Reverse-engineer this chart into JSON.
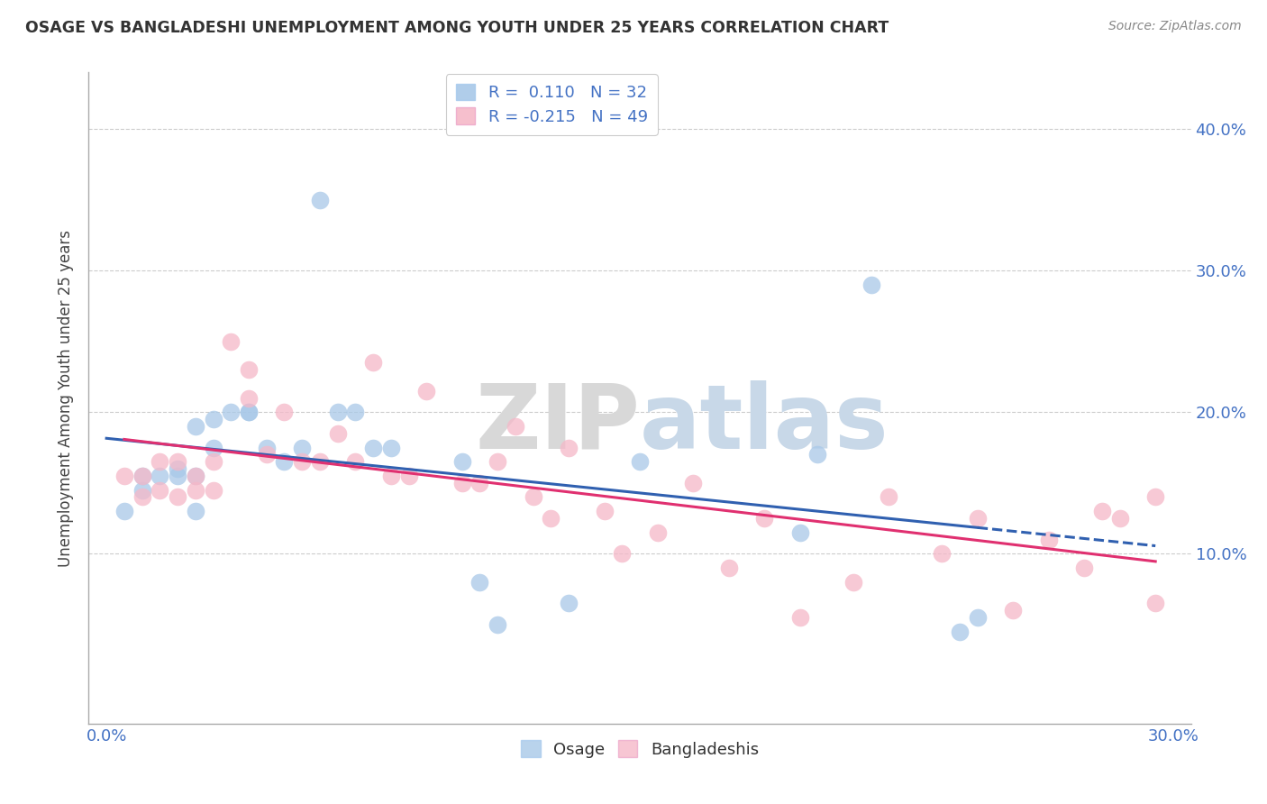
{
  "title": "OSAGE VS BANGLADESHI UNEMPLOYMENT AMONG YOUTH UNDER 25 YEARS CORRELATION CHART",
  "source": "Source: ZipAtlas.com",
  "ylabel": "Unemployment Among Youth under 25 years",
  "watermark_zip": "ZIP",
  "watermark_atlas": "atlas",
  "xlim": [
    -0.005,
    0.305
  ],
  "ylim": [
    -0.02,
    0.44
  ],
  "xticks": [
    0.0,
    0.05,
    0.1,
    0.15,
    0.2,
    0.25,
    0.3
  ],
  "ytick_positions": [
    0.0,
    0.1,
    0.2,
    0.3,
    0.4
  ],
  "ytick_labels_right": [
    "",
    "10.0%",
    "20.0%",
    "30.0%",
    "40.0%"
  ],
  "osage_color": "#a8c8e8",
  "bangladeshi_color": "#f5b8c8",
  "osage_line_color": "#3060b0",
  "bangladeshi_line_color": "#e03070",
  "legend_r_osage": " 0.110",
  "legend_n_osage": "32",
  "legend_r_bangladeshi": "-0.215",
  "legend_n_bangladeshi": "49",
  "osage_x": [
    0.005,
    0.01,
    0.01,
    0.015,
    0.02,
    0.02,
    0.025,
    0.025,
    0.025,
    0.03,
    0.03,
    0.035,
    0.04,
    0.04,
    0.045,
    0.05,
    0.055,
    0.06,
    0.065,
    0.07,
    0.075,
    0.08,
    0.1,
    0.105,
    0.11,
    0.13,
    0.15,
    0.195,
    0.2,
    0.215,
    0.24,
    0.245
  ],
  "osage_y": [
    0.13,
    0.155,
    0.145,
    0.155,
    0.155,
    0.16,
    0.19,
    0.155,
    0.13,
    0.195,
    0.175,
    0.2,
    0.2,
    0.2,
    0.175,
    0.165,
    0.175,
    0.35,
    0.2,
    0.2,
    0.175,
    0.175,
    0.165,
    0.08,
    0.05,
    0.065,
    0.165,
    0.115,
    0.17,
    0.29,
    0.045,
    0.055
  ],
  "bangladeshi_x": [
    0.005,
    0.01,
    0.01,
    0.015,
    0.015,
    0.02,
    0.02,
    0.025,
    0.025,
    0.03,
    0.03,
    0.035,
    0.04,
    0.04,
    0.045,
    0.05,
    0.055,
    0.06,
    0.065,
    0.07,
    0.075,
    0.08,
    0.085,
    0.09,
    0.1,
    0.105,
    0.11,
    0.115,
    0.12,
    0.125,
    0.13,
    0.14,
    0.145,
    0.155,
    0.165,
    0.175,
    0.185,
    0.195,
    0.21,
    0.22,
    0.235,
    0.245,
    0.255,
    0.265,
    0.275,
    0.285,
    0.295,
    0.295,
    0.28
  ],
  "bangladeshi_y": [
    0.155,
    0.155,
    0.14,
    0.165,
    0.145,
    0.165,
    0.14,
    0.155,
    0.145,
    0.165,
    0.145,
    0.25,
    0.23,
    0.21,
    0.17,
    0.2,
    0.165,
    0.165,
    0.185,
    0.165,
    0.235,
    0.155,
    0.155,
    0.215,
    0.15,
    0.15,
    0.165,
    0.19,
    0.14,
    0.125,
    0.175,
    0.13,
    0.1,
    0.115,
    0.15,
    0.09,
    0.125,
    0.055,
    0.08,
    0.14,
    0.1,
    0.125,
    0.06,
    0.11,
    0.09,
    0.125,
    0.065,
    0.14,
    0.13
  ],
  "background_color": "#ffffff",
  "grid_color": "#cccccc"
}
